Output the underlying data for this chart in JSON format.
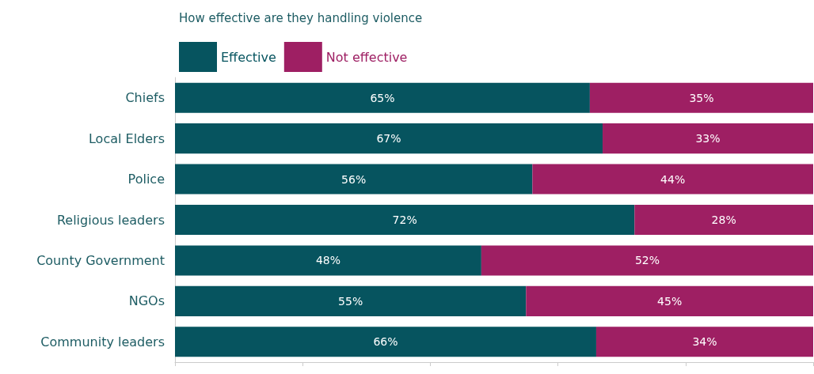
{
  "chart_data": {
    "type": "bar",
    "orientation": "horizontal",
    "stacked": true,
    "title": "How effective are they handling violence",
    "categories": [
      "Chiefs",
      "Local Elders",
      "Police",
      "Religious leaders",
      "County Government",
      "NGOs",
      "Community leaders"
    ],
    "series": [
      {
        "name": "Effective",
        "color": "#06545f",
        "values": [
          65,
          67,
          56,
          72,
          48,
          55,
          66
        ],
        "value_labels": [
          "65%",
          "67%",
          "56%",
          "72%",
          "48%",
          "55%",
          "66%"
        ]
      },
      {
        "name": "Not effective",
        "color": "#9e1f63",
        "values": [
          35,
          33,
          44,
          28,
          52,
          45,
          34
        ],
        "value_labels": [
          "35%",
          "33%",
          "44%",
          "28%",
          "52%",
          "45%",
          "34%"
        ]
      }
    ],
    "xlim": [
      0,
      100
    ],
    "xticks": [
      {
        "value": 0,
        "label": null
      },
      {
        "value": 20,
        "label": null
      },
      {
        "value": 40,
        "label": null
      },
      {
        "value": 60,
        "label": null
      },
      {
        "value": 80,
        "label": null
      },
      {
        "value": 100,
        "label": null
      }
    ],
    "tick_labels": "y",
    "legend": "top left",
    "grid": false
  }
}
